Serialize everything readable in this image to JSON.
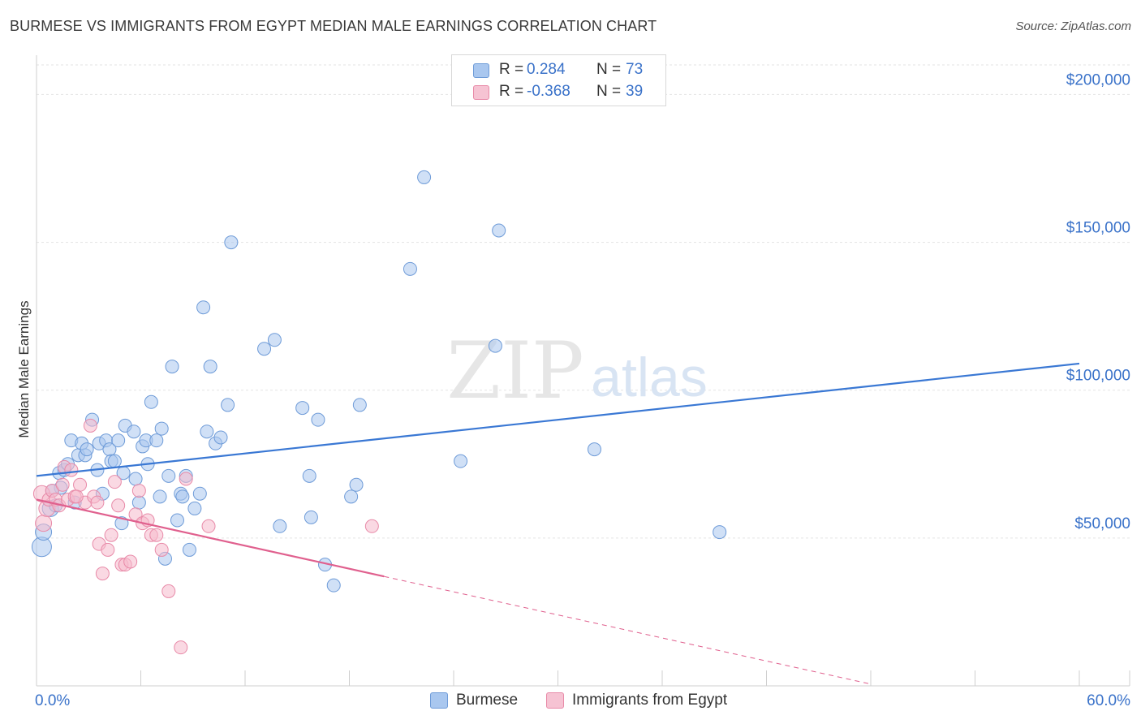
{
  "title": "BURMESE VS IMMIGRANTS FROM EGYPT MEDIAN MALE EARNINGS CORRELATION CHART",
  "source": "Source: ZipAtlas.com",
  "watermark": {
    "zip": "ZIP",
    "atlas": "atlas"
  },
  "legend_top": {
    "rows": [
      {
        "r_label": "R =",
        "r_value": "0.284",
        "n_label": "N =",
        "n_value": "73"
      },
      {
        "r_label": "R =",
        "r_value": "-0.368",
        "n_label": "N =",
        "n_value": "39"
      }
    ]
  },
  "colors": {
    "blue_fill": "#a9c7ef",
    "blue_stroke": "#6e9bd8",
    "blue_line": "#3a78d4",
    "pink_fill": "#f6b9cc",
    "pink_stroke": "#e88aa8",
    "pink_line": "#e0608e",
    "axis_label": "#3a72c9",
    "grid": "#e3e3e3"
  },
  "chart_data": {
    "type": "scatter",
    "title": "BURMESE VS IMMIGRANTS FROM EGYPT MEDIAN MALE EARNINGS CORRELATION CHART",
    "xlabel": "",
    "ylabel": "Median Male Earnings",
    "xlim": [
      0,
      60
    ],
    "ylim": [
      0,
      210000
    ],
    "x_tick_labels": [
      "0.0%",
      "60.0%"
    ],
    "y_ticks": [
      {
        "value": 50000,
        "label": "$50,000"
      },
      {
        "value": 100000,
        "label": "$100,000"
      },
      {
        "value": 150000,
        "label": "$150,000"
      },
      {
        "value": 200000,
        "label": "$200,000"
      }
    ],
    "grid": true,
    "legend": "bottom-center",
    "series": [
      {
        "name": "Burmese",
        "color": "blue",
        "r": 0.284,
        "n": 73,
        "trend": {
          "x0": 0,
          "y0": 71000,
          "x1": 60,
          "y1": 109000,
          "dashed_x1": null
        },
        "points": [
          [
            0.3,
            47000,
            12
          ],
          [
            0.4,
            52000,
            10
          ],
          [
            0.8,
            60000,
            10
          ],
          [
            1.1,
            61000,
            8
          ],
          [
            1.3,
            72000,
            8
          ],
          [
            1.4,
            67000,
            8
          ],
          [
            1.6,
            73000,
            8
          ],
          [
            1.8,
            75000,
            8
          ],
          [
            2.0,
            83000,
            8
          ],
          [
            2.2,
            62000,
            8
          ],
          [
            2.4,
            78000,
            8
          ],
          [
            2.6,
            82000,
            8
          ],
          [
            2.8,
            78000,
            8
          ],
          [
            2.9,
            80000,
            8
          ],
          [
            3.2,
            90000,
            8
          ],
          [
            3.5,
            73000,
            8
          ],
          [
            3.6,
            82000,
            8
          ],
          [
            3.8,
            65000,
            8
          ],
          [
            4.0,
            83000,
            8
          ],
          [
            4.2,
            80000,
            8
          ],
          [
            4.3,
            76000,
            8
          ],
          [
            4.5,
            76000,
            8
          ],
          [
            4.7,
            83000,
            8
          ],
          [
            4.9,
            55000,
            8
          ],
          [
            5.0,
            72000,
            8
          ],
          [
            5.1,
            88000,
            8
          ],
          [
            5.6,
            86000,
            8
          ],
          [
            5.7,
            70000,
            8
          ],
          [
            5.9,
            62000,
            8
          ],
          [
            6.1,
            81000,
            8
          ],
          [
            6.3,
            83000,
            8
          ],
          [
            6.4,
            75000,
            8
          ],
          [
            6.6,
            96000,
            8
          ],
          [
            6.9,
            83000,
            8
          ],
          [
            7.1,
            64000,
            8
          ],
          [
            7.2,
            87000,
            8
          ],
          [
            7.4,
            43000,
            8
          ],
          [
            7.6,
            71000,
            8
          ],
          [
            7.8,
            108000,
            8
          ],
          [
            8.1,
            56000,
            8
          ],
          [
            8.3,
            65000,
            8
          ],
          [
            8.4,
            64000,
            8
          ],
          [
            8.6,
            71000,
            8
          ],
          [
            8.8,
            46000,
            8
          ],
          [
            9.1,
            60000,
            8
          ],
          [
            9.4,
            65000,
            8
          ],
          [
            9.6,
            128000,
            8
          ],
          [
            9.8,
            86000,
            8
          ],
          [
            10.0,
            108000,
            8
          ],
          [
            10.3,
            82000,
            8
          ],
          [
            10.6,
            84000,
            8
          ],
          [
            11.0,
            95000,
            8
          ],
          [
            11.2,
            150000,
            8
          ],
          [
            13.1,
            114000,
            8
          ],
          [
            13.7,
            117000,
            8
          ],
          [
            14.0,
            54000,
            8
          ],
          [
            15.3,
            94000,
            8
          ],
          [
            15.7,
            71000,
            8
          ],
          [
            15.8,
            57000,
            8
          ],
          [
            16.2,
            90000,
            8
          ],
          [
            16.6,
            41000,
            8
          ],
          [
            17.1,
            34000,
            8
          ],
          [
            18.1,
            64000,
            8
          ],
          [
            18.4,
            68000,
            8
          ],
          [
            18.6,
            95000,
            8
          ],
          [
            21.5,
            141000,
            8
          ],
          [
            22.3,
            172000,
            8
          ],
          [
            24.4,
            76000,
            8
          ],
          [
            26.4,
            115000,
            8
          ],
          [
            26.6,
            154000,
            8
          ],
          [
            32.1,
            80000,
            8
          ],
          [
            39.3,
            52000,
            8
          ],
          [
            0.9,
            66000,
            8
          ]
        ]
      },
      {
        "name": "Immigrants from Egypt",
        "color": "pink",
        "r": -0.368,
        "n": 39,
        "trend": {
          "x0": 0,
          "y0": 63000,
          "x1": 20,
          "y1": 37000,
          "dashed_x1": 48
        },
        "points": [
          [
            0.3,
            65000,
            10
          ],
          [
            0.4,
            55000,
            10
          ],
          [
            0.6,
            60000,
            10
          ],
          [
            0.7,
            63000,
            8
          ],
          [
            0.9,
            66000,
            8
          ],
          [
            1.1,
            63000,
            8
          ],
          [
            1.3,
            61000,
            8
          ],
          [
            1.5,
            68000,
            8
          ],
          [
            1.6,
            74000,
            8
          ],
          [
            1.8,
            63000,
            8
          ],
          [
            2.0,
            73000,
            8
          ],
          [
            2.2,
            64000,
            8
          ],
          [
            2.5,
            68000,
            8
          ],
          [
            2.8,
            62000,
            8
          ],
          [
            3.1,
            88000,
            8
          ],
          [
            3.3,
            64000,
            8
          ],
          [
            3.5,
            62000,
            8
          ],
          [
            3.6,
            48000,
            8
          ],
          [
            3.8,
            38000,
            8
          ],
          [
            4.1,
            46000,
            8
          ],
          [
            4.3,
            51000,
            8
          ],
          [
            4.5,
            69000,
            8
          ],
          [
            4.7,
            61000,
            8
          ],
          [
            4.9,
            41000,
            8
          ],
          [
            5.1,
            41000,
            8
          ],
          [
            5.4,
            42000,
            8
          ],
          [
            5.7,
            58000,
            8
          ],
          [
            5.9,
            66000,
            8
          ],
          [
            6.1,
            55000,
            8
          ],
          [
            6.4,
            56000,
            8
          ],
          [
            6.6,
            51000,
            8
          ],
          [
            6.9,
            51000,
            8
          ],
          [
            7.2,
            46000,
            8
          ],
          [
            7.6,
            32000,
            8
          ],
          [
            8.3,
            13000,
            8
          ],
          [
            8.6,
            70000,
            8
          ],
          [
            9.9,
            54000,
            8
          ],
          [
            19.3,
            54000,
            8
          ],
          [
            2.3,
            64000,
            8
          ]
        ]
      }
    ]
  },
  "legend_bottom": [
    {
      "label": "Burmese"
    },
    {
      "label": "Immigrants from Egypt"
    }
  ]
}
